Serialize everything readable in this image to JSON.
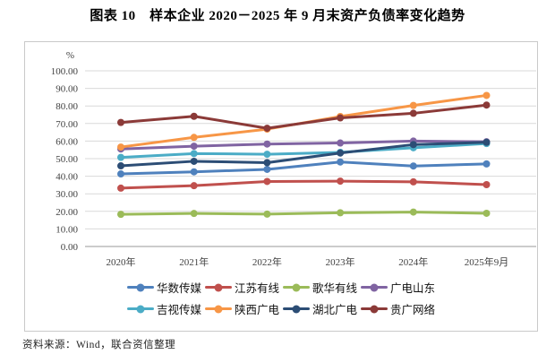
{
  "page": {
    "title": "图表 10　样本企业 2020－2025 年 9 月末资产负债率变化趋势",
    "source": "资料来源：Wind，联合资信整理"
  },
  "chart_data": {
    "type": "line",
    "title": "图表 10　样本企业 2020－2025 年 9 月末资产负债率变化趋势",
    "unit_label": "%",
    "xlabel": "",
    "ylabel": "%",
    "categories": [
      "2020年",
      "2021年",
      "2022年",
      "2023年",
      "2024年",
      "2025年9月"
    ],
    "ylim": [
      0,
      100
    ],
    "ytick_step": 10,
    "yticks": [
      "0.00",
      "10.00",
      "20.00",
      "30.00",
      "40.00",
      "50.00",
      "60.00",
      "70.00",
      "80.00",
      "90.00",
      "100.00"
    ],
    "grid": true,
    "legend_position": "bottom",
    "colors": {
      "gridline": "#d9d9d9",
      "axis_line": "#9a9a9a",
      "tick_text": "#3f3f3f"
    },
    "series": [
      {
        "name": "华数传媒",
        "color": "#4F81BD",
        "values": [
          41.3,
          42.5,
          43.9,
          48.1,
          45.8,
          47.0
        ]
      },
      {
        "name": "江苏有线",
        "color": "#C0504D",
        "values": [
          33.2,
          34.6,
          37.0,
          37.2,
          36.8,
          35.2
        ]
      },
      {
        "name": "歌华有线",
        "color": "#9BBB59",
        "values": [
          18.3,
          18.8,
          18.4,
          19.2,
          19.6,
          18.9
        ]
      },
      {
        "name": "广电山东",
        "color": "#8064A2",
        "values": [
          55.5,
          57.1,
          58.3,
          58.9,
          60.0,
          59.6
        ]
      },
      {
        "name": "吉视传媒",
        "color": "#4BACC6",
        "values": [
          50.7,
          52.9,
          52.5,
          53.6,
          56.2,
          58.6
        ]
      },
      {
        "name": "陕西广电",
        "color": "#F79646",
        "values": [
          56.6,
          62.1,
          66.8,
          74.0,
          80.3,
          86.0
        ]
      },
      {
        "name": "湖北广电",
        "color": "#2C4D75",
        "values": [
          45.9,
          48.5,
          47.7,
          53.2,
          58.0,
          59.3
        ]
      },
      {
        "name": "贵广网络",
        "color": "#8B3A38",
        "values": [
          70.6,
          74.1,
          67.3,
          73.2,
          75.8,
          80.5
        ]
      }
    ]
  }
}
